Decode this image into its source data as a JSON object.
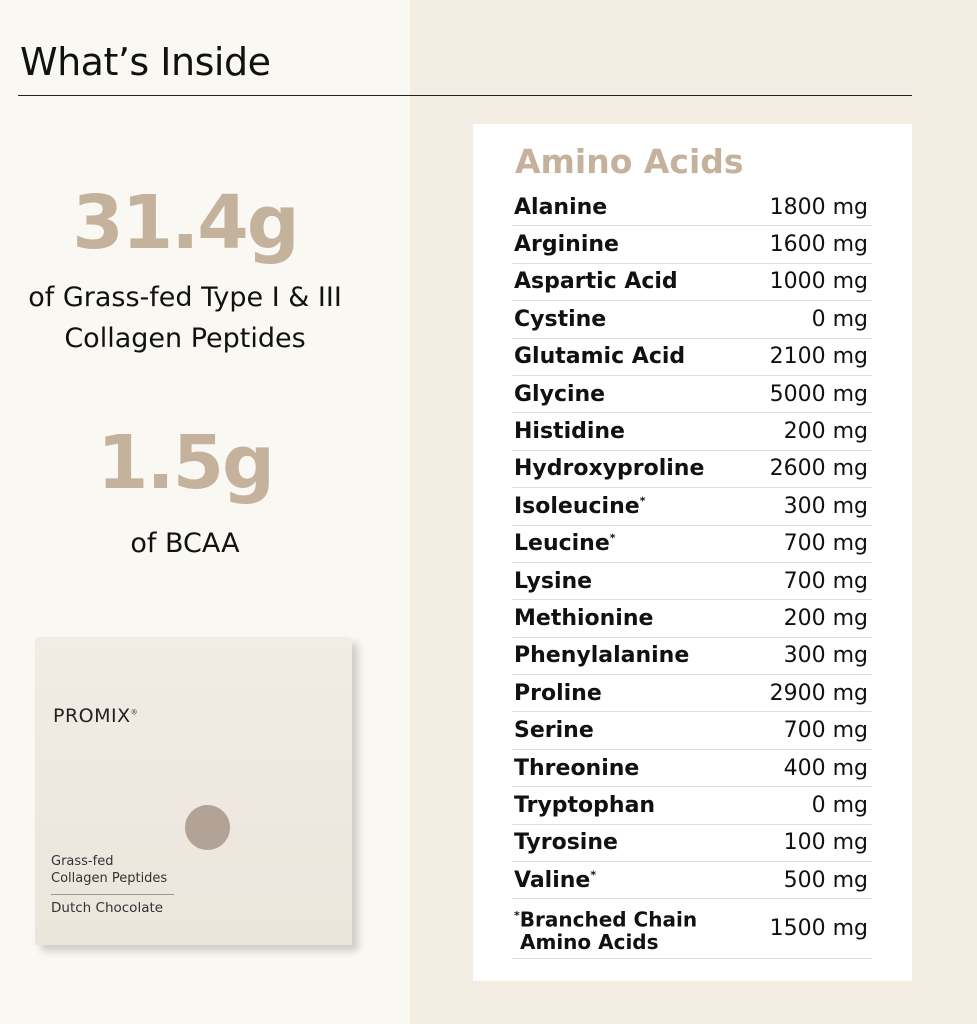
{
  "header": {
    "title": "What’s Inside"
  },
  "stats": [
    {
      "value": "31.4g",
      "line1": "of Grass-fed Type I & III",
      "line2": "Collagen Peptides"
    },
    {
      "value": "1.5g",
      "line1": "of BCAA"
    }
  ],
  "product": {
    "brand": "PROMIX",
    "reg": "®",
    "line1": "Grass-fed",
    "line2": "Collagen Peptides",
    "flavor": "Dutch Chocolate"
  },
  "table": {
    "title": "Amino Acids",
    "rows": [
      {
        "name": "Alanine",
        "mark": "",
        "value": "1800 mg"
      },
      {
        "name": "Arginine",
        "mark": "",
        "value": "1600 mg"
      },
      {
        "name": "Aspartic Acid",
        "mark": "",
        "value": "1000 mg"
      },
      {
        "name": "Cystine",
        "mark": "",
        "value": "0 mg"
      },
      {
        "name": "Glutamic Acid",
        "mark": "",
        "value": "2100 mg"
      },
      {
        "name": "Glycine",
        "mark": "",
        "value": "5000 mg"
      },
      {
        "name": "Histidine",
        "mark": "",
        "value": "200 mg"
      },
      {
        "name": "Hydroxyproline",
        "mark": "",
        "value": "2600 mg"
      },
      {
        "name": "Isoleucine",
        "mark": "*",
        "value": "300 mg"
      },
      {
        "name": "Leucine",
        "mark": "*",
        "value": "700 mg"
      },
      {
        "name": "Lysine",
        "mark": "",
        "value": "700 mg"
      },
      {
        "name": "Methionine",
        "mark": "",
        "value": "200 mg"
      },
      {
        "name": "Phenylalanine",
        "mark": "",
        "value": "300 mg"
      },
      {
        "name": "Proline",
        "mark": "",
        "value": "2900 mg"
      },
      {
        "name": "Serine",
        "mark": "",
        "value": "700 mg"
      },
      {
        "name": "Threonine",
        "mark": "",
        "value": "400 mg"
      },
      {
        "name": "Tryptophan",
        "mark": "",
        "value": "0 mg"
      },
      {
        "name": "Tyrosine",
        "mark": "",
        "value": "100 mg"
      },
      {
        "name": "Valine",
        "mark": "*",
        "value": "500 mg"
      }
    ],
    "footer": {
      "mark": "*",
      "line1": "Branched Chain",
      "line2": "Amino Acids",
      "value": "1500 mg"
    }
  },
  "colors": {
    "accent": "#c4b29c",
    "left_bg": "#faf8f3",
    "right_bg": "#f4ede4"
  }
}
